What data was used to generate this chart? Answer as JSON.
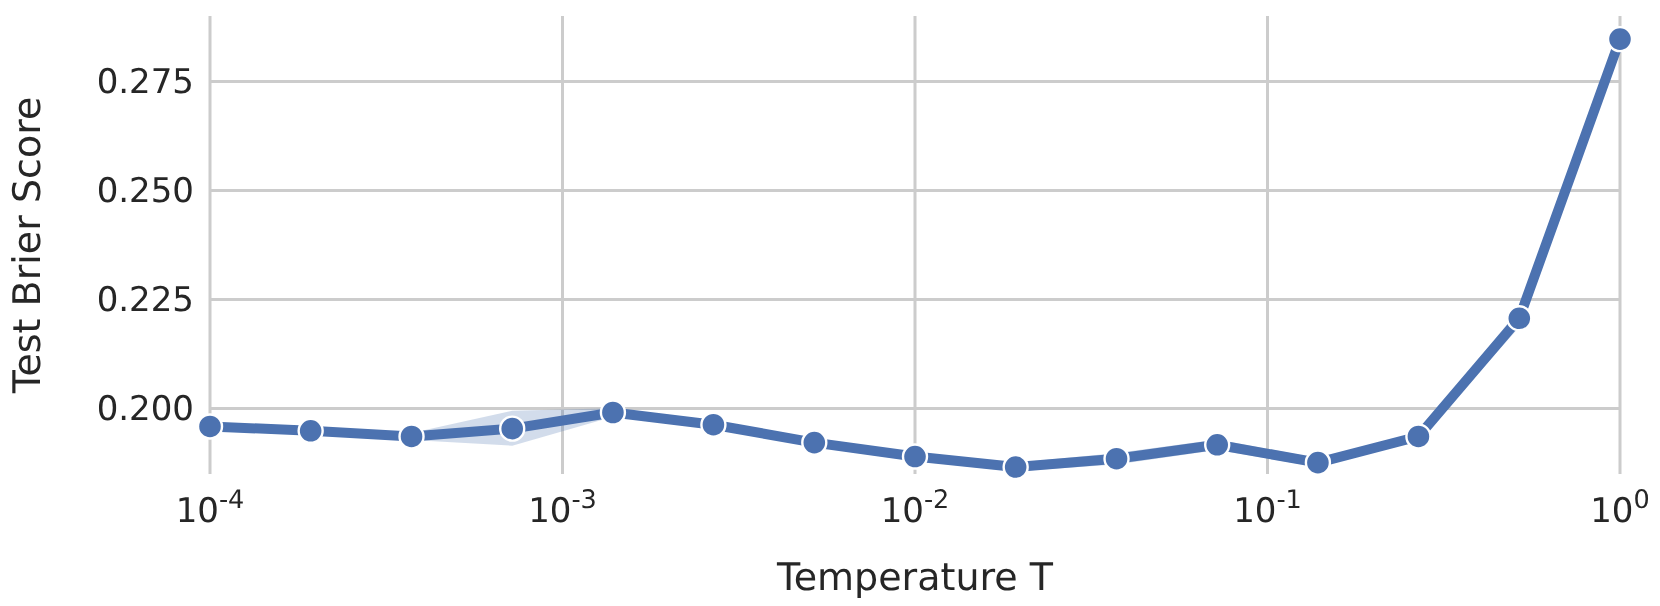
{
  "chart_data": {
    "type": "line",
    "xlabel": "Temperature T",
    "ylabel": "Test Brier Score",
    "x": [
      0.0001,
      0.000193,
      0.000373,
      0.00072,
      0.00139,
      0.00268,
      0.00518,
      0.01,
      0.0193,
      0.0373,
      0.072,
      0.139,
      0.268,
      0.518,
      1
    ],
    "series": [
      {
        "color": "#4c72b0",
        "values": [
          0.1959,
          0.1949,
          0.1936,
          0.1954,
          0.1991,
          0.1963,
          0.1922,
          0.189,
          0.1866,
          0.1885,
          0.1917,
          0.1876,
          0.1936,
          0.2207,
          0.2847
        ],
        "lower": [
          0.1949,
          0.1941,
          0.1928,
          0.1915,
          0.1981,
          0.1953,
          0.1912,
          0.188,
          0.1856,
          0.1872,
          0.1905,
          0.1866,
          0.1926,
          0.2187,
          0.2827
        ],
        "upper": [
          0.1969,
          0.1957,
          0.1944,
          0.1995,
          0.2001,
          0.1973,
          0.1932,
          0.19,
          0.1876,
          0.1898,
          0.1929,
          0.1886,
          0.1946,
          0.2227,
          0.2867
        ]
      }
    ],
    "xlim": [
      0.0001,
      1
    ],
    "log": "x",
    "xticks": [
      {
        "value": 0.0001,
        "label": "10$^{-4}$"
      },
      {
        "value": 0.001,
        "label": "10$^{-3}$"
      },
      {
        "value": 0.01,
        "label": "10$^{-2}$"
      },
      {
        "value": 0.1,
        "label": "10$^{-1}$"
      },
      {
        "value": 1,
        "label": "10$^{0}$"
      }
    ],
    "ylim": [
      0.185,
      0.29
    ],
    "yticks": [
      {
        "value": 0.2,
        "label": "0.200"
      },
      {
        "value": 0.225,
        "label": "0.225"
      },
      {
        "value": 0.25,
        "label": "0.250"
      },
      {
        "value": 0.275,
        "label": "0.275"
      }
    ],
    "grid": true,
    "marker": "circle",
    "line_style": "solid"
  }
}
